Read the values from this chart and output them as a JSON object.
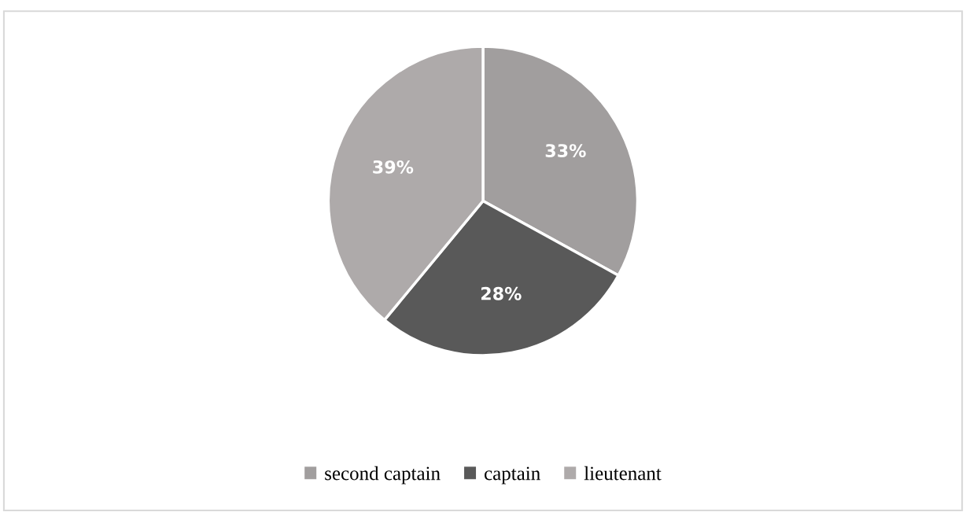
{
  "chart_data": {
    "type": "pie",
    "categories": [
      "second captain",
      "captain",
      "lieutenant"
    ],
    "values": [
      33,
      28,
      39
    ],
    "colors": [
      "#a19e9e",
      "#595959",
      "#aeaaaa"
    ],
    "value_labels": [
      "33%",
      "28%",
      "39%"
    ],
    "legend": "bottom"
  }
}
